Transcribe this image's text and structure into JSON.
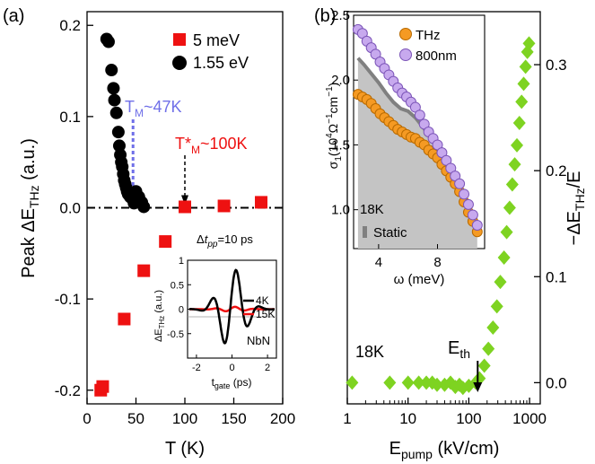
{
  "colors": {
    "red": "#ee1111",
    "black": "#000000",
    "blue": "#6f6fe8",
    "orange": "#f59a23",
    "purple": "#c7a9ee",
    "green": "#7ed321",
    "gray_fill": "#c4c4c4",
    "gray_line": "#808080"
  },
  "chart_data": [
    {
      "id": "a",
      "type": "scatter",
      "panel_label": "(a)",
      "xlabel": "T (K)",
      "ylabel": "Peak ΔE_THz (a.u.)",
      "xlim": [
        0,
        200
      ],
      "ylim": [
        -0.215,
        0.215
      ],
      "xticks": [
        0,
        50,
        100,
        150,
        200
      ],
      "yticks": [
        -0.2,
        -0.1,
        0.0,
        0.1,
        0.2
      ],
      "legend": [
        "5 meV",
        "1.55 eV"
      ],
      "legend_position": "top-right",
      "series": [
        {
          "name": "5 meV",
          "marker": "square",
          "color": "#ee1111",
          "x": [
            14,
            16,
            38,
            58,
            80,
            100,
            140,
            178
          ],
          "y": [
            -0.2,
            -0.196,
            -0.122,
            -0.069,
            -0.037,
            0.001,
            0.002,
            0.006
          ]
        },
        {
          "name": "1.55 eV",
          "marker": "circle",
          "color": "#000000",
          "x": [
            20,
            22,
            25,
            27,
            28,
            30,
            32,
            33,
            34,
            35,
            36,
            37,
            38,
            39,
            40,
            41,
            42,
            44,
            46,
            48,
            50,
            53,
            56,
            58
          ],
          "y": [
            0.185,
            0.182,
            0.151,
            0.131,
            0.118,
            0.104,
            0.083,
            0.068,
            0.058,
            0.05,
            0.045,
            0.037,
            0.03,
            0.026,
            0.022,
            0.018,
            0.015,
            0.012,
            0.01,
            0.005,
            0.018,
            0.012,
            0.006,
            0.001
          ]
        }
      ],
      "annotations": {
        "tm_label": "T_M~47K",
        "tm_star_label": "T*_M~100K",
        "dt_label": "Δt_pp=10 ps"
      },
      "inset": {
        "type": "line",
        "xlabel": "t_gate (ps)",
        "ylabel": "ΔE_THz (a.u.)",
        "xlim": [
          -2.5,
          2.5
        ],
        "ylim": [
          -1.0,
          1.0
        ],
        "xticks": [
          -2,
          0,
          2
        ],
        "yticks": [
          -0.5,
          0.0,
          0.5,
          1.0
        ],
        "legend": [
          "4K",
          "15K"
        ],
        "legend_position": "right",
        "annotation": "NbN"
      }
    },
    {
      "id": "b",
      "type": "scatter",
      "panel_label": "(b)",
      "xlabel": "E_pump (kV/cm)",
      "ylabel": "−ΔE_THz/E",
      "xscale": "log",
      "xlim": [
        1,
        1500
      ],
      "ylim": [
        -0.02,
        0.35
      ],
      "xticks": [
        1,
        10,
        100,
        1000
      ],
      "yticks": [
        0.0,
        0.1,
        0.2,
        0.3
      ],
      "annotations": {
        "temp": "18K",
        "eth": "E_th"
      },
      "series": [
        {
          "name": "",
          "marker": "diamond",
          "color": "#7ed321",
          "x": [
            1.2,
            5,
            10,
            15,
            20,
            25,
            30,
            40,
            50,
            60,
            70,
            80,
            100,
            130,
            150,
            180,
            210,
            250,
            290,
            330,
            380,
            420,
            470,
            520,
            570,
            620,
            680,
            740,
            800,
            860,
            920,
            980
          ],
          "y": [
            0.0,
            0.0,
            0.0,
            0.0,
            0.0,
            0.0,
            -0.002,
            -0.002,
            0.0,
            -0.004,
            -0.002,
            -0.005,
            -0.003,
            0.0,
            0.004,
            0.016,
            0.032,
            0.052,
            0.072,
            0.095,
            0.118,
            0.142,
            0.165,
            0.187,
            0.206,
            0.224,
            0.245,
            0.265,
            0.282,
            0.298,
            0.312,
            0.32
          ]
        }
      ],
      "inset": {
        "type": "line",
        "xlabel": "ω (meV)",
        "ylabel": "σ_1 (10^4 Ω^-1 cm^-1)",
        "xlim": [
          2.3,
          11.2
        ],
        "ylim": [
          0.7,
          2.5
        ],
        "xticks": [
          4,
          8
        ],
        "yticks": [
          1.0,
          1.5,
          2.0,
          2.5
        ],
        "legend": [
          "THz",
          "800nm",
          "Static"
        ],
        "legend_position": "top-right",
        "annotation": "18K",
        "series": [
          {
            "name": "THz",
            "color": "#f59a23",
            "x": [
              2.6,
              2.9,
              3.2,
              3.5,
              3.8,
              4.1,
              4.4,
              4.7,
              5.0,
              5.3,
              5.6,
              5.9,
              6.2,
              6.5,
              6.8,
              7.1,
              7.4,
              7.7,
              8.0,
              8.3,
              8.6,
              8.9,
              9.2,
              9.5,
              9.8,
              10.1,
              10.4,
              10.7
            ],
            "y": [
              1.89,
              1.87,
              1.85,
              1.82,
              1.78,
              1.74,
              1.71,
              1.68,
              1.65,
              1.62,
              1.6,
              1.58,
              1.56,
              1.55,
              1.52,
              1.5,
              1.46,
              1.43,
              1.4,
              1.35,
              1.3,
              1.25,
              1.2,
              1.14,
              1.06,
              0.98,
              0.91,
              0.83
            ]
          },
          {
            "name": "800nm",
            "color": "#c7a9ee",
            "x": [
              2.6,
              2.9,
              3.2,
              3.5,
              3.8,
              4.1,
              4.4,
              4.7,
              5.0,
              5.3,
              5.6,
              5.9,
              6.2,
              6.5,
              6.8,
              7.1,
              7.4,
              7.7,
              8.0,
              8.3,
              8.6,
              8.9,
              9.2,
              9.5,
              9.8,
              10.1,
              10.4,
              10.7
            ],
            "y": [
              2.39,
              2.36,
              2.3,
              2.25,
              2.2,
              2.14,
              2.09,
              2.04,
              1.99,
              1.94,
              1.9,
              1.87,
              1.83,
              1.79,
              1.73,
              1.66,
              1.6,
              1.55,
              1.5,
              1.44,
              1.38,
              1.32,
              1.26,
              1.2,
              1.12,
              1.04,
              0.96,
              0.88
            ]
          },
          {
            "name": "Static",
            "color": "#808080",
            "x": [
              2.6,
              3.0,
              3.5,
              4.0,
              4.5,
              5.0,
              5.5,
              6.0,
              6.5,
              7.0,
              7.5,
              8.0,
              8.5,
              9.0,
              9.5,
              10.0,
              10.5,
              10.7
            ],
            "y": [
              2.17,
              2.12,
              2.05,
              1.98,
              1.9,
              1.83,
              1.78,
              1.76,
              1.71,
              1.64,
              1.56,
              1.48,
              1.38,
              1.27,
              1.15,
              1.02,
              0.9,
              0.8
            ]
          }
        ]
      }
    }
  ]
}
